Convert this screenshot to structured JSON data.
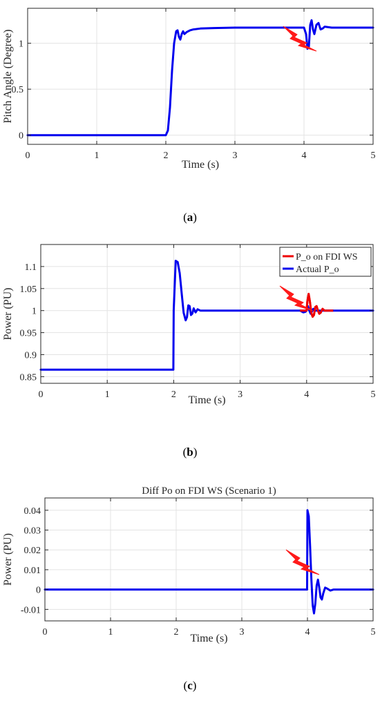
{
  "chart_data": [
    {
      "type": "line",
      "caption": "(a)",
      "caption_letter": "a",
      "title": "",
      "xlabel": "Time (s)",
      "ylabel": "Pitch Angle (Degree)",
      "xlim": [
        0,
        5
      ],
      "ylim": [
        -0.1,
        1.38
      ],
      "xticks": [
        0,
        1,
        2,
        3,
        4,
        5
      ],
      "yticks": [
        0,
        0.5,
        1
      ],
      "xtick_labels": [
        "0",
        "1",
        "2",
        "3",
        "4",
        "5"
      ],
      "ytick_labels": [
        "0",
        "0.5",
        "1"
      ],
      "grid": true,
      "series": [
        {
          "color": "#0000ee",
          "x": [
            0,
            2.0,
            2.03,
            2.06,
            2.09,
            2.12,
            2.15,
            2.17,
            2.19,
            2.21,
            2.23,
            2.25,
            2.27,
            2.3,
            2.35,
            2.4,
            2.5,
            2.7,
            3.0,
            3.5,
            3.95,
            4.0,
            4.03,
            4.05,
            4.07,
            4.09,
            4.11,
            4.13,
            4.15,
            4.18,
            4.21,
            4.24,
            4.27,
            4.3,
            4.4,
            5.0
          ],
          "y": [
            0,
            0,
            0.05,
            0.3,
            0.7,
            1.0,
            1.13,
            1.14,
            1.07,
            1.04,
            1.1,
            1.13,
            1.1,
            1.12,
            1.14,
            1.15,
            1.16,
            1.165,
            1.17,
            1.17,
            1.17,
            1.17,
            1.1,
            0.94,
            0.96,
            1.2,
            1.25,
            1.15,
            1.1,
            1.2,
            1.22,
            1.15,
            1.16,
            1.18,
            1.17,
            1.17
          ]
        }
      ]
    },
    {
      "type": "line",
      "caption": "(b)",
      "caption_letter": "b",
      "title": "",
      "xlabel": "Time (s)",
      "ylabel": "Power (PU)",
      "xlim": [
        0,
        5
      ],
      "ylim": [
        0.835,
        1.15
      ],
      "xticks": [
        0,
        1,
        2,
        3,
        4,
        5
      ],
      "yticks": [
        0.85,
        0.9,
        0.95,
        1,
        1.05,
        1.1
      ],
      "xtick_labels": [
        "0",
        "1",
        "2",
        "3",
        "4",
        "5"
      ],
      "ytick_labels": [
        "0.85",
        "0.9",
        "0.95",
        "1",
        "1.05",
        "1.1"
      ],
      "grid": true,
      "legend_position": "top-right",
      "series": [
        {
          "name": "P_o on FDI WS",
          "color": "#ee0000",
          "x": [
            3.9,
            4.0,
            4.01,
            4.03,
            4.05,
            4.07,
            4.09,
            4.11,
            4.13,
            4.15,
            4.17,
            4.19,
            4.21,
            4.24,
            4.27,
            4.3,
            4.4
          ],
          "y": [
            1,
            1,
            1.02,
            1.038,
            1.02,
            0.995,
            0.986,
            0.99,
            1.008,
            1.01,
            1.0,
            0.993,
            0.995,
            1.004,
            1.0,
            1.0,
            1.0
          ]
        },
        {
          "name": "Actual P_o",
          "color": "#0000ee",
          "x": [
            0,
            1.995,
            2.0,
            2.03,
            2.06,
            2.09,
            2.12,
            2.15,
            2.18,
            2.2,
            2.22,
            2.24,
            2.26,
            2.28,
            2.3,
            2.33,
            2.36,
            2.4,
            2.5,
            3.9,
            3.95,
            3.98,
            4.0,
            4.02,
            4.04,
            4.06,
            4.08,
            4.1,
            4.12,
            4.15,
            4.2,
            5.0
          ],
          "y": [
            0.866,
            0.866,
            1.0,
            1.113,
            1.11,
            1.085,
            1.04,
            0.995,
            0.978,
            0.985,
            1.012,
            1.01,
            0.99,
            0.993,
            1.005,
            0.996,
            1.003,
            1.0,
            1.0,
            1.0,
            0.996,
            0.997,
            1.0,
            1.01,
            1.0,
            0.993,
            0.998,
            1.004,
            1.0,
            1.0,
            1.0,
            1.0
          ]
        }
      ]
    },
    {
      "type": "line",
      "caption": "(c)",
      "caption_letter": "c",
      "title": "Diff Po on FDI WS (Scenario 1)",
      "xlabel": "Time (s)",
      "ylabel": "Power (PU)",
      "xlim": [
        0,
        5
      ],
      "ylim": [
        -0.0158,
        0.0462
      ],
      "xticks": [
        0,
        1,
        2,
        3,
        4,
        5
      ],
      "yticks": [
        -0.01,
        0,
        0.01,
        0.02,
        0.03,
        0.04
      ],
      "xtick_labels": [
        "0",
        "1",
        "2",
        "3",
        "4",
        "5"
      ],
      "ytick_labels": [
        "-0.01",
        "0",
        "0.01",
        "0.02",
        "0.03",
        "0.04"
      ],
      "grid": true,
      "series": [
        {
          "color": "#0000ee",
          "x": [
            0,
            3.98,
            3.995,
            4.0,
            4.02,
            4.04,
            4.06,
            4.08,
            4.1,
            4.12,
            4.14,
            4.16,
            4.18,
            4.2,
            4.22,
            4.24,
            4.27,
            4.3,
            4.35,
            4.4,
            5.0
          ],
          "y": [
            0,
            0,
            0.0,
            0.04,
            0.037,
            0.022,
            0.005,
            -0.008,
            -0.012,
            -0.007,
            0.002,
            0.005,
            0.001,
            -0.004,
            -0.005,
            -0.002,
            0.001,
            0.0005,
            -0.0005,
            0,
            0
          ]
        }
      ]
    }
  ]
}
